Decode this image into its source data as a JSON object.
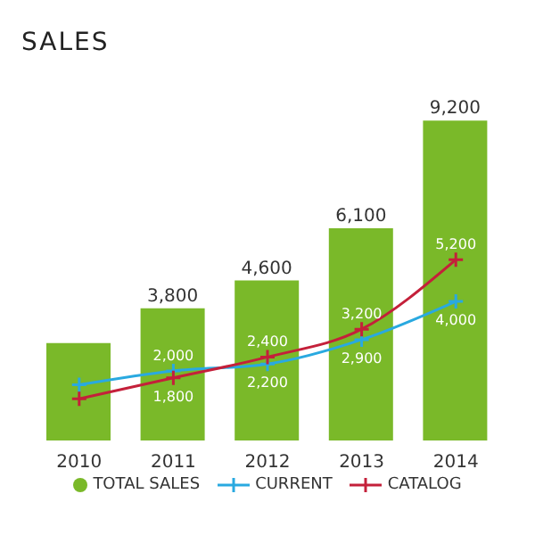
{
  "chart_data": {
    "type": "bar",
    "title": "SALES",
    "categories": [
      "2010",
      "2011",
      "2012",
      "2013",
      "2014"
    ],
    "series": [
      {
        "name": "TOTAL SALES",
        "color": "#7ab929",
        "values": [
          2800,
          3800,
          4600,
          6100,
          9200
        ],
        "value_labels": [
          null,
          "3,800",
          "4,600",
          "6,100",
          "9,200"
        ]
      },
      {
        "name": "CURRENT",
        "type": "line",
        "color": "#29a9e0",
        "values": [
          1600,
          2000,
          2200,
          2900,
          4000
        ],
        "value_labels": [
          null,
          "2,000",
          "2,200",
          "2,900",
          "4,000"
        ]
      },
      {
        "name": "CATALOG",
        "type": "line",
        "color": "#c4203a",
        "values": [
          1200,
          1800,
          2400,
          3200,
          5200
        ],
        "value_labels": [
          null,
          "1,800",
          "2,400",
          "3,200",
          "5,200"
        ]
      }
    ],
    "legend": "bottom",
    "marker": "cross",
    "grid": false
  }
}
